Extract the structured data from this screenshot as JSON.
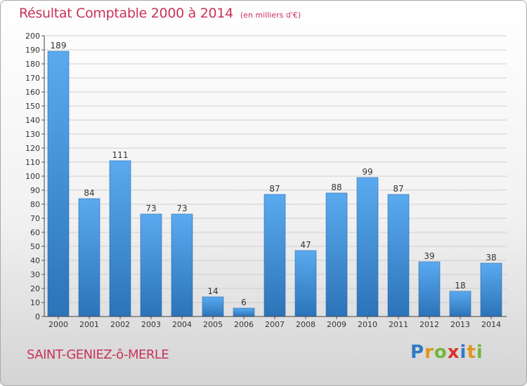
{
  "title": "Résultat Comptable 2000 à 2014",
  "subtitle": "(en milliers d'€)",
  "commune": "SAINT-GENIEZ-ô-MERLE",
  "brand": {
    "letters": [
      "P",
      "r",
      "o",
      "x",
      "i",
      "t",
      "i"
    ],
    "colors": [
      "#2e7bc4",
      "#e0951c",
      "#73b63c",
      "#d8342c",
      "#2e7bc4",
      "#e0951c",
      "#73b63c"
    ]
  },
  "colors": {
    "bar": "#4a9be0",
    "bar_dark": "#2f79be",
    "accent": "#c9325a",
    "grid": "#cfcfcf"
  },
  "chart_data": {
    "type": "bar",
    "categories": [
      "2000",
      "2001",
      "2002",
      "2003",
      "2004",
      "2005",
      "2006",
      "2007",
      "2008",
      "2009",
      "2010",
      "2011",
      "2012",
      "2013",
      "2014"
    ],
    "values": [
      189,
      84,
      111,
      73,
      73,
      14,
      6,
      87,
      47,
      88,
      99,
      87,
      39,
      18,
      38
    ],
    "ylim": [
      0,
      200
    ],
    "yticks": [
      0,
      10,
      20,
      30,
      40,
      50,
      60,
      70,
      80,
      90,
      100,
      110,
      120,
      130,
      140,
      150,
      160,
      170,
      180,
      190,
      200
    ],
    "grid": true
  }
}
